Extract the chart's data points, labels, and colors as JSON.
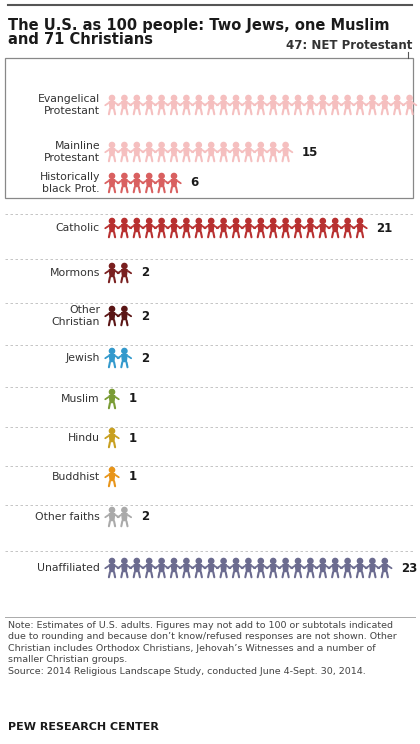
{
  "title_line1": "The U.S. as 100 people: Two Jews, one Muslim",
  "title_line2": "and 71 Christians",
  "net_protestant_label": "47: NET Protestant",
  "categories": [
    {
      "label": "Evangelical\nProtestant",
      "count": 25,
      "color": "#f5bfbf",
      "group": "protestant"
    },
    {
      "label": "Mainline\nProtestant",
      "count": 15,
      "color": "#f5bfbf",
      "group": "protestant"
    },
    {
      "label": "Historically\nblack Prot.",
      "count": 6,
      "color": "#d96060",
      "group": "protestant"
    },
    {
      "label": "Catholic",
      "count": 21,
      "color": "#b83030",
      "group": "other"
    },
    {
      "label": "Mormons",
      "count": 2,
      "color": "#7a2020",
      "group": "other"
    },
    {
      "label": "Other\nChristian",
      "count": 2,
      "color": "#5a1515",
      "group": "other"
    },
    {
      "label": "Jewish",
      "count": 2,
      "color": "#3399cc",
      "group": "other"
    },
    {
      "label": "Muslim",
      "count": 1,
      "color": "#7a9c35",
      "group": "other"
    },
    {
      "label": "Hindu",
      "count": 1,
      "color": "#c8a020",
      "group": "other"
    },
    {
      "label": "Buddhist",
      "count": 1,
      "color": "#e8951a",
      "group": "other"
    },
    {
      "label": "Other faiths",
      "count": 2,
      "color": "#aaaaaa",
      "group": "other"
    },
    {
      "label": "Unaffiliated",
      "count": 23,
      "color": "#6b6b8f",
      "group": "other"
    }
  ],
  "note_lines": [
    "Note: Estimates of U.S. adults. Figures may not add to 100 or subtotals indicated",
    "due to rounding and because don’t know/refused responses are not shown. Other",
    "Christian includes Orthodox Christians, Jehovah’s Witnesses and a number of",
    "smaller Christian groups.",
    "Source: 2014 Religious Landscape Study, conducted June 4-Sept. 30, 2014."
  ],
  "footer": "PEW RESEARCH CENTER",
  "bg_color": "#ffffff",
  "title_fontsize": 10.5,
  "label_fontsize": 7.8,
  "count_fontsize": 8.5,
  "note_fontsize": 6.8,
  "footer_fontsize": 8.0
}
